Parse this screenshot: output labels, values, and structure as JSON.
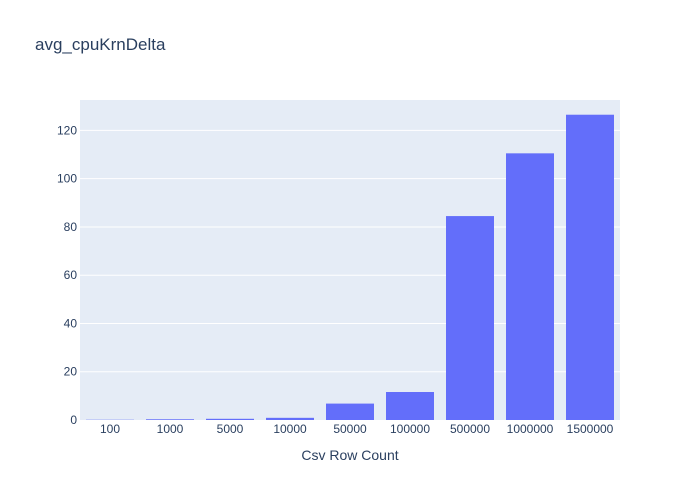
{
  "chart_data": {
    "type": "bar",
    "title": "avg_cpuKrnDelta",
    "xlabel": "Csv Row Count",
    "ylabel": "",
    "categories": [
      "100",
      "1000",
      "5000",
      "10000",
      "50000",
      "100000",
      "500000",
      "1000000",
      "1500000"
    ],
    "values": [
      0.1,
      0.3,
      0.5,
      0.9,
      6.8,
      11.6,
      84.5,
      110.5,
      126.5
    ],
    "ylim": [
      0,
      132.6
    ],
    "yticks": [
      "0",
      "20",
      "40",
      "60",
      "80",
      "100",
      "120"
    ],
    "grid": true,
    "colors": {
      "bar": "#636efa",
      "plot_bg": "#e5ecf6",
      "grid": "#ffffff",
      "text": "#2a3f5f"
    }
  }
}
